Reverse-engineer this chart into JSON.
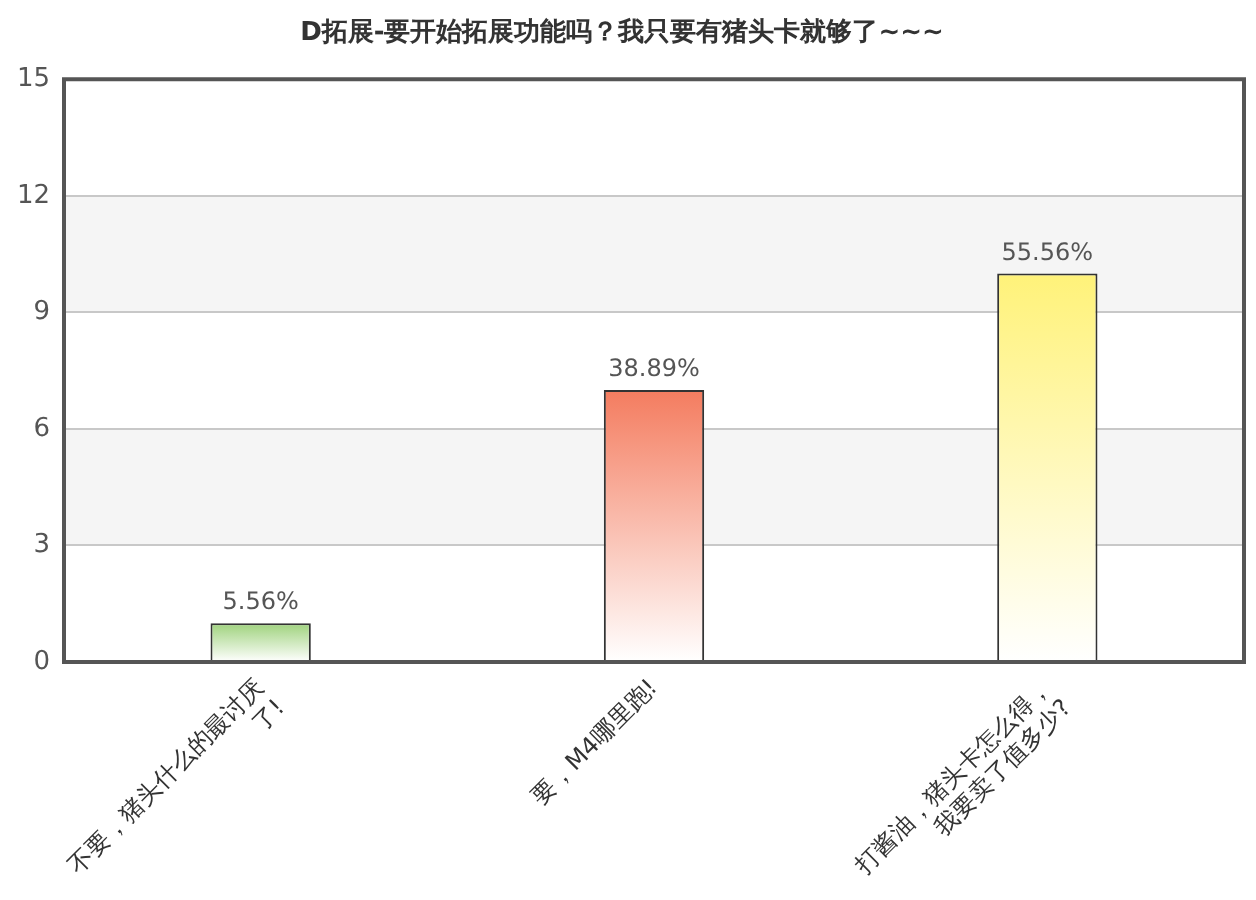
{
  "chart_data": {
    "type": "bar",
    "title": "D拓展-要开始拓展功能吗？我只要有猪头卡就够了~~~",
    "categories": [
      "不要，猪头什么的最讨厌了!",
      "要，M4哪里跑!",
      "打酱油，猪头卡怎么得，我要卖了值多少?"
    ],
    "values": [
      1,
      7,
      10
    ],
    "colors": [
      "#9ed27c",
      "#f47c5f",
      "#fff279"
    ],
    "annotations": [
      {
        "text": "5.56%",
        "x": "不要，猪头什么的最讨厌了!",
        "y": 1
      },
      {
        "text": "38.89%",
        "x": "要，M4哪里跑!",
        "y": 7
      },
      {
        "text": "55.56%",
        "x": "打酱油，猪头卡怎么得，我要卖了值多少?",
        "y": 10
      }
    ],
    "ylim": [
      0,
      15
    ],
    "yticks": [
      0,
      3,
      6,
      9,
      12,
      15
    ],
    "grid": "y"
  }
}
